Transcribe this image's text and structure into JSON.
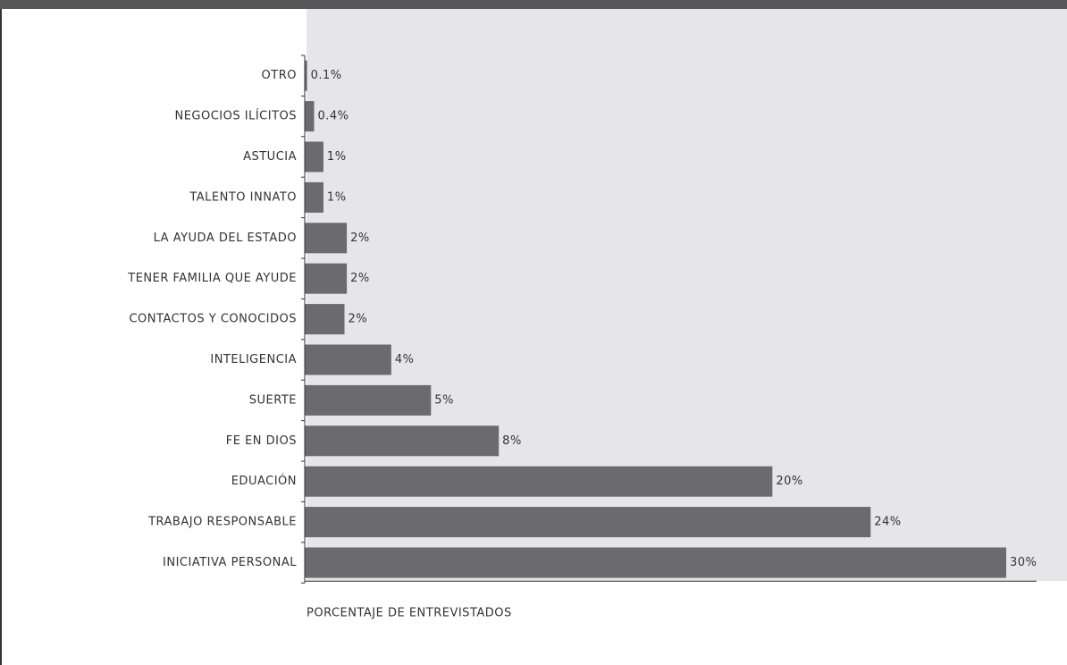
{
  "chart_data": {
    "type": "hbar",
    "x_label": "PORCENTAJE DE ENTREVISTADOS",
    "categories": [
      "OTRO",
      "NEGOCIOS ILÍCITOS",
      "ASTUCIA",
      "TALENTO INNATO",
      "LA AYUDA DEL ESTADO",
      "TENER FAMILIA QUE AYUDE",
      "CONTACTOS Y CONOCIDOS",
      "INTELIGENCIA",
      "SUERTE",
      "FE EN DIOS",
      "EDUACIÓN",
      "TRABAJO RESPONSABLE",
      "INICIATIVA PERSONAL"
    ],
    "values": [
      0.1,
      0.4,
      0.8,
      0.8,
      1.8,
      1.8,
      1.7,
      3.7,
      5.4,
      8.3,
      20.0,
      24.2,
      30.0
    ],
    "value_labels": [
      "0.1%",
      "0.4%",
      "1%",
      "1%",
      "2%",
      "2%",
      "2%",
      "4%",
      "5%",
      "8%",
      "20%",
      "24%",
      "30%"
    ],
    "color": "#6b6b6e",
    "xlim": [
      0,
      31.3
    ]
  }
}
